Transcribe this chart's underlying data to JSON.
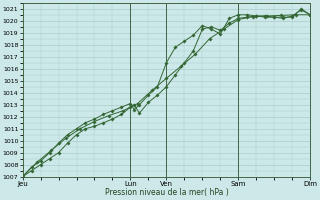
{
  "title": "",
  "xlabel": "Pression niveau de la mer( hPa )",
  "ylabel": "",
  "ylim": [
    1007,
    1021.5
  ],
  "yticks": [
    1007,
    1008,
    1009,
    1010,
    1011,
    1012,
    1013,
    1014,
    1015,
    1016,
    1017,
    1018,
    1019,
    1020,
    1021
  ],
  "day_labels": [
    "Jeu",
    "Lun",
    "Ven",
    "Sam",
    "Dim"
  ],
  "day_positions": [
    0,
    3.0,
    4.0,
    6.0,
    8.0
  ],
  "background_color": "#cce8e8",
  "grid_color": "#aacccc",
  "line_color": "#336633",
  "line1_x": [
    0.0,
    0.25,
    0.5,
    0.75,
    1.0,
    1.25,
    1.5,
    1.75,
    2.0,
    2.25,
    2.5,
    2.75,
    3.0,
    3.1,
    3.25,
    3.5,
    3.75,
    4.0,
    4.25,
    4.5,
    4.75,
    5.0,
    5.25,
    5.5,
    5.75,
    6.0,
    6.25,
    6.5,
    6.75,
    7.0,
    7.25,
    7.5,
    7.75,
    8.0
  ],
  "line1_y": [
    1007.0,
    1007.5,
    1008.0,
    1008.5,
    1009.0,
    1009.8,
    1010.5,
    1011.0,
    1011.2,
    1011.5,
    1011.8,
    1012.2,
    1012.8,
    1013.0,
    1012.3,
    1013.2,
    1013.8,
    1014.5,
    1015.5,
    1016.5,
    1017.5,
    1019.3,
    1019.5,
    1019.2,
    1019.8,
    1020.2,
    1020.3,
    1020.4,
    1020.3,
    1020.3,
    1020.2,
    1020.4,
    1020.9,
    1020.5
  ],
  "line2_x": [
    0.0,
    0.25,
    0.5,
    0.75,
    1.0,
    1.25,
    1.5,
    1.75,
    2.0,
    2.25,
    2.5,
    2.75,
    3.0,
    3.1,
    3.25,
    3.5,
    3.75,
    4.0,
    4.25,
    4.5,
    4.75,
    5.0,
    5.25,
    5.5,
    5.75,
    6.0,
    6.25,
    6.5,
    6.75,
    7.0,
    7.25,
    7.5,
    7.75,
    8.0
  ],
  "line2_y": [
    1007.0,
    1007.8,
    1008.3,
    1009.0,
    1009.8,
    1010.5,
    1011.0,
    1011.5,
    1011.8,
    1012.2,
    1012.5,
    1012.8,
    1013.1,
    1012.6,
    1013.0,
    1013.8,
    1014.5,
    1016.5,
    1017.8,
    1018.3,
    1018.8,
    1019.6,
    1019.3,
    1018.9,
    1020.2,
    1020.5,
    1020.5,
    1020.4,
    1020.4,
    1020.3,
    1020.3,
    1020.3,
    1021.0,
    1020.5
  ],
  "line3_x": [
    0.0,
    0.4,
    0.8,
    1.2,
    1.6,
    2.0,
    2.4,
    2.8,
    3.2,
    3.6,
    4.0,
    4.4,
    4.8,
    5.2,
    5.6,
    6.0,
    6.4,
    6.8,
    7.2,
    7.6,
    8.0
  ],
  "line3_y": [
    1007.0,
    1008.2,
    1009.2,
    1010.2,
    1011.0,
    1011.6,
    1012.1,
    1012.5,
    1013.1,
    1014.2,
    1015.2,
    1016.2,
    1017.2,
    1018.5,
    1019.3,
    1020.1,
    1020.35,
    1020.4,
    1020.45,
    1020.5,
    1020.5
  ]
}
